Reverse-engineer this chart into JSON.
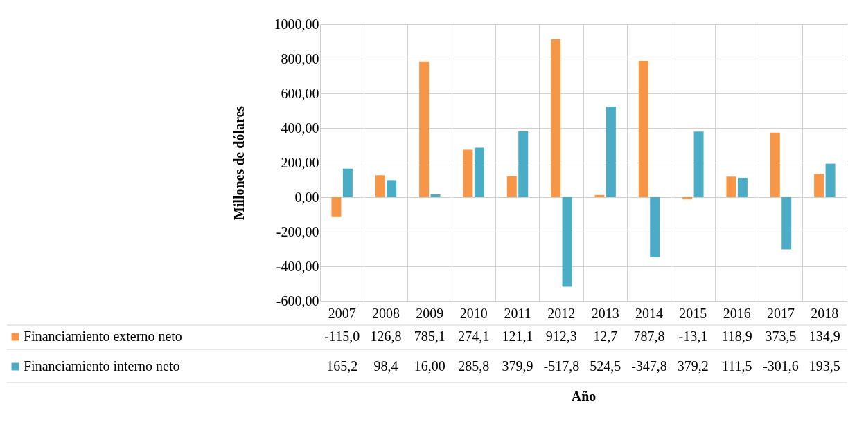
{
  "chart_data": {
    "type": "bar",
    "xlabel": "Año",
    "ylabel": "Millones de dólares",
    "categories": [
      "2007",
      "2008",
      "2009",
      "2010",
      "2011",
      "2012",
      "2013",
      "2014",
      "2015",
      "2016",
      "2017",
      "2018"
    ],
    "series": [
      {
        "name": "Financiamiento externo neto",
        "color": "#f79646",
        "values": [
          -115.0,
          126.8,
          785.1,
          274.1,
          121.1,
          912.3,
          12.7,
          787.8,
          -13.1,
          118.9,
          373.5,
          134.9
        ],
        "value_labels": [
          "-115,0",
          "126,8",
          "785,1",
          "274,1",
          "121,1",
          "912,3",
          "12,7",
          "787,8",
          "-13,1",
          "118,9",
          "373,5",
          "134,9"
        ]
      },
      {
        "name": "Financiamiento interno neto",
        "color": "#4bacc6",
        "values": [
          165.2,
          98.4,
          16.0,
          285.8,
          379.9,
          -517.8,
          524.5,
          -347.8,
          379.2,
          111.5,
          -301.6,
          193.5
        ],
        "value_labels": [
          "165,2",
          "98,4",
          "16,00",
          "285,8",
          "379,9",
          "-517,8",
          "524,5",
          "-347,8",
          "379,2",
          "111,5",
          "-301,6",
          "193,5"
        ]
      }
    ],
    "ylim": [
      -600,
      1000
    ],
    "yticks": [
      {
        "value": -600,
        "label": "-600,00"
      },
      {
        "value": -400,
        "label": "-400,00"
      },
      {
        "value": -200,
        "label": "-200,00"
      },
      {
        "value": 0,
        "label": "0,00"
      },
      {
        "value": 200,
        "label": "200,00"
      },
      {
        "value": 400,
        "label": "400,00"
      },
      {
        "value": 600,
        "label": "600,00"
      },
      {
        "value": 800,
        "label": "800,00"
      },
      {
        "value": 1000,
        "label": "1000,00"
      }
    ],
    "grid": true,
    "legend": "bottom"
  }
}
